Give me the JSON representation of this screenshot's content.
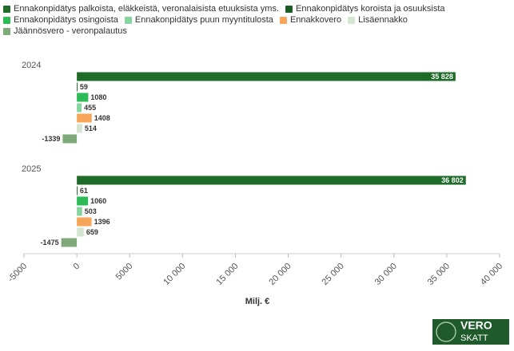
{
  "chart_data": {
    "type": "hbar",
    "categories": [
      "2024",
      "2025"
    ],
    "series": [
      {
        "name": "Ennakonpidätys palkoista, eläkkeistä, veronalaisista etuuksista yms.",
        "color": "#1f6b2a",
        "values": [
          35828,
          36802
        ],
        "value_labels": [
          "35 828",
          "36 802"
        ]
      },
      {
        "name": "Ennakonpidätys koroista ja osuuksista",
        "color": "#1d5e27",
        "values": [
          59,
          61
        ]
      },
      {
        "name": "Ennakonpidätys osingoista",
        "color": "#2dbb57",
        "values": [
          1080,
          1060
        ]
      },
      {
        "name": "Ennakonpidätys puun myyntitulosta",
        "color": "#86d4a0",
        "values": [
          455,
          503
        ]
      },
      {
        "name": "Ennakkovero",
        "color": "#f6a55b",
        "values": [
          1408,
          1396
        ]
      },
      {
        "name": "Lisäennakko",
        "color": "#d3e6cf",
        "values": [
          514,
          659
        ]
      },
      {
        "name": "Jäännösvero - veronpalautus",
        "color": "#7daa78",
        "values": [
          -1339,
          -1475
        ]
      }
    ],
    "xlim": [
      -5000,
      40000
    ],
    "xticks": [
      -5000,
      0,
      5000,
      {
        "value": 10000,
        "label": "10 000"
      },
      {
        "value": 15000,
        "label": "15 000"
      },
      {
        "value": 20000,
        "label": "20 000"
      },
      {
        "value": 25000,
        "label": "25 000"
      },
      {
        "value": 30000,
        "label": "30 000"
      },
      {
        "value": 35000,
        "label": "35 000"
      },
      {
        "value": 40000,
        "label": "40 000"
      }
    ],
    "xlabel": "Milj. €"
  },
  "logo": {
    "line1": "VERO",
    "line2": "SKATT"
  }
}
